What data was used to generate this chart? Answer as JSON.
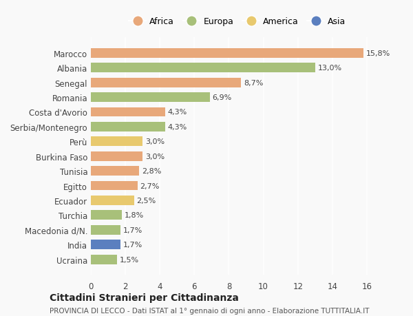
{
  "countries": [
    "Ucraina",
    "India",
    "Macedonia d/N.",
    "Turchia",
    "Ecuador",
    "Egitto",
    "Tunisia",
    "Burkina Faso",
    "Perù",
    "Serbia/Montenegro",
    "Costa d'Avorio",
    "Romania",
    "Senegal",
    "Albania",
    "Marocco"
  ],
  "values": [
    1.5,
    1.7,
    1.7,
    1.8,
    2.5,
    2.7,
    2.8,
    3.0,
    3.0,
    4.3,
    4.3,
    6.9,
    8.7,
    13.0,
    15.8
  ],
  "labels": [
    "1,5%",
    "1,7%",
    "1,7%",
    "1,8%",
    "2,5%",
    "2,7%",
    "2,8%",
    "3,0%",
    "3,0%",
    "4,3%",
    "4,3%",
    "6,9%",
    "8,7%",
    "13,0%",
    "15,8%"
  ],
  "colors": [
    "#a8c07a",
    "#5b7fbf",
    "#a8c07a",
    "#a8c07a",
    "#e8c96e",
    "#e8a87a",
    "#e8a87a",
    "#e8a87a",
    "#e8c96e",
    "#a8c07a",
    "#e8a87a",
    "#a8c07a",
    "#e8a87a",
    "#a8c07a",
    "#e8a87a"
  ],
  "legend_labels": [
    "Africa",
    "Europa",
    "America",
    "Asia"
  ],
  "legend_colors": [
    "#e8a87a",
    "#a8c07a",
    "#e8c96e",
    "#5b7fbf"
  ],
  "title": "Cittadini Stranieri per Cittadinanza",
  "subtitle": "PROVINCIA DI LECCO - Dati ISTAT al 1° gennaio di ogni anno - Elaborazione TUTTITALIA.IT",
  "xlim": [
    0,
    17
  ],
  "xticks": [
    0,
    2,
    4,
    6,
    8,
    10,
    12,
    14,
    16
  ],
  "background_color": "#f9f9f9"
}
